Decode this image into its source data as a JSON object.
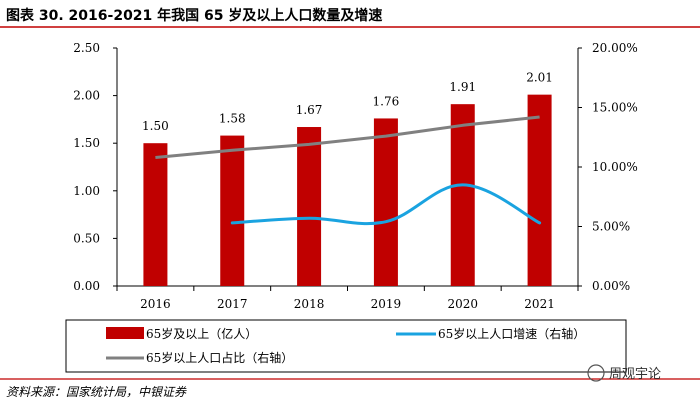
{
  "title": "图表 30. 2016-2021 年我国 65 岁及以上人口数量及增速",
  "source": "资料来源：国家统计局，中银证券",
  "watermark": "周观宇论",
  "chart_data": {
    "type": "bar+line",
    "categories": [
      "2016",
      "2017",
      "2018",
      "2019",
      "2020",
      "2021"
    ],
    "left_axis": {
      "min": 0,
      "max": 2.5,
      "step": 0.5,
      "ticks": [
        "0.00",
        "0.50",
        "1.00",
        "1.50",
        "2.00",
        "2.50"
      ]
    },
    "right_axis": {
      "min": 0,
      "max": 20,
      "step": 5,
      "unit": "%",
      "ticks": [
        "0.00%",
        "5.00%",
        "10.00%",
        "15.00%",
        "20.00%"
      ]
    },
    "series": [
      {
        "name": "65岁及以上（亿人）",
        "type": "bar",
        "axis": "left",
        "color": "#c00000",
        "values": [
          1.5,
          1.58,
          1.67,
          1.76,
          1.91,
          2.01
        ],
        "labels": [
          "1.50",
          "1.58",
          "1.67",
          "1.76",
          "1.91",
          "2.01"
        ]
      },
      {
        "name": "65岁以上人口增速（右轴）",
        "type": "line",
        "axis": "right",
        "color": "#1aa3e0",
        "smooth": true,
        "values": [
          null,
          5.3,
          5.7,
          5.4,
          8.5,
          5.3
        ]
      },
      {
        "name": "65岁以上人口占比（右轴）",
        "type": "line",
        "axis": "right",
        "color": "#808080",
        "values": [
          10.8,
          11.4,
          11.9,
          12.6,
          13.5,
          14.2
        ]
      }
    ]
  }
}
